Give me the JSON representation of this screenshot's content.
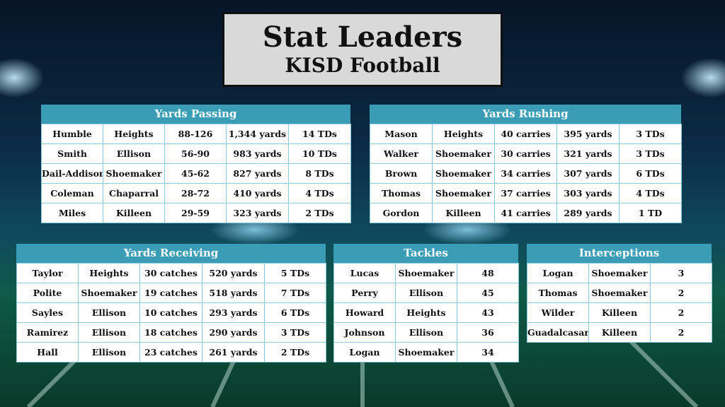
{
  "title": {
    "main": "Stat Leaders",
    "sub": "KISD Football"
  },
  "passing": {
    "header": "Yards Passing",
    "rows": [
      [
        "Humble",
        "Heights",
        "88-126",
        "1,344 yards",
        "14 TDs"
      ],
      [
        "Smith",
        "Ellison",
        "56-90",
        "983 yards",
        "10 TDs"
      ],
      [
        "Dail-Addison",
        "Shoemaker",
        "45-62",
        "827 yards",
        "8 TDs"
      ],
      [
        "Coleman",
        "Chaparral",
        "28-72",
        "410 yards",
        "4 TDs"
      ],
      [
        "Miles",
        "Killeen",
        "29-59",
        "323 yards",
        "2 TDs"
      ]
    ]
  },
  "rushing": {
    "header": "Yards Rushing",
    "rows": [
      [
        "Mason",
        "Heights",
        "40 carries",
        "395 yards",
        "3 TDs"
      ],
      [
        "Walker",
        "Shoemaker",
        "30 carries",
        "321 yards",
        "3 TDs"
      ],
      [
        "Brown",
        "Shoemaker",
        "34 carries",
        "307 yards",
        "6 TDs"
      ],
      [
        "Thomas",
        "Shoemaker",
        "37 carries",
        "303 yards",
        "4 TDs"
      ],
      [
        "Gordon",
        "Killeen",
        "41 carries",
        "289 yards",
        "1 TD"
      ]
    ]
  },
  "receiving": {
    "header": "Yards Receiving",
    "rows": [
      [
        "Taylor",
        "Heights",
        "30 catches",
        "520 yards",
        "5 TDs"
      ],
      [
        "Polite",
        "Shoemaker",
        "19 catches",
        "518 yards",
        "7 TDs"
      ],
      [
        "Sayles",
        "Ellison",
        "10 catches",
        "293 yards",
        "6 TDs"
      ],
      [
        "Ramirez",
        "Ellison",
        "18 catches",
        "290 yards",
        "3 TDs"
      ],
      [
        "Hall",
        "Ellison",
        "23 catches",
        "261 yards",
        "2 TDs"
      ]
    ]
  },
  "tackles": {
    "header": "Tackles",
    "rows": [
      [
        "Lucas",
        "Shoemaker",
        "48"
      ],
      [
        "Perry",
        "Ellison",
        "45"
      ],
      [
        "Howard",
        "Heights",
        "43"
      ],
      [
        "Johnson",
        "Ellison",
        "36"
      ],
      [
        "Logan",
        "Shoemaker",
        "34"
      ]
    ]
  },
  "interceptions": {
    "header": "Interceptions",
    "rows": [
      [
        "Logan",
        "Shoemaker",
        "3"
      ],
      [
        "Thomas",
        "Shoemaker",
        "2"
      ],
      [
        "Wilder",
        "Killeen",
        "2"
      ],
      [
        "Guadalcasar",
        "Killeen",
        "2"
      ]
    ]
  },
  "colors": {
    "header": "#3b9cb5",
    "title_bg": "#d9d9d9"
  }
}
